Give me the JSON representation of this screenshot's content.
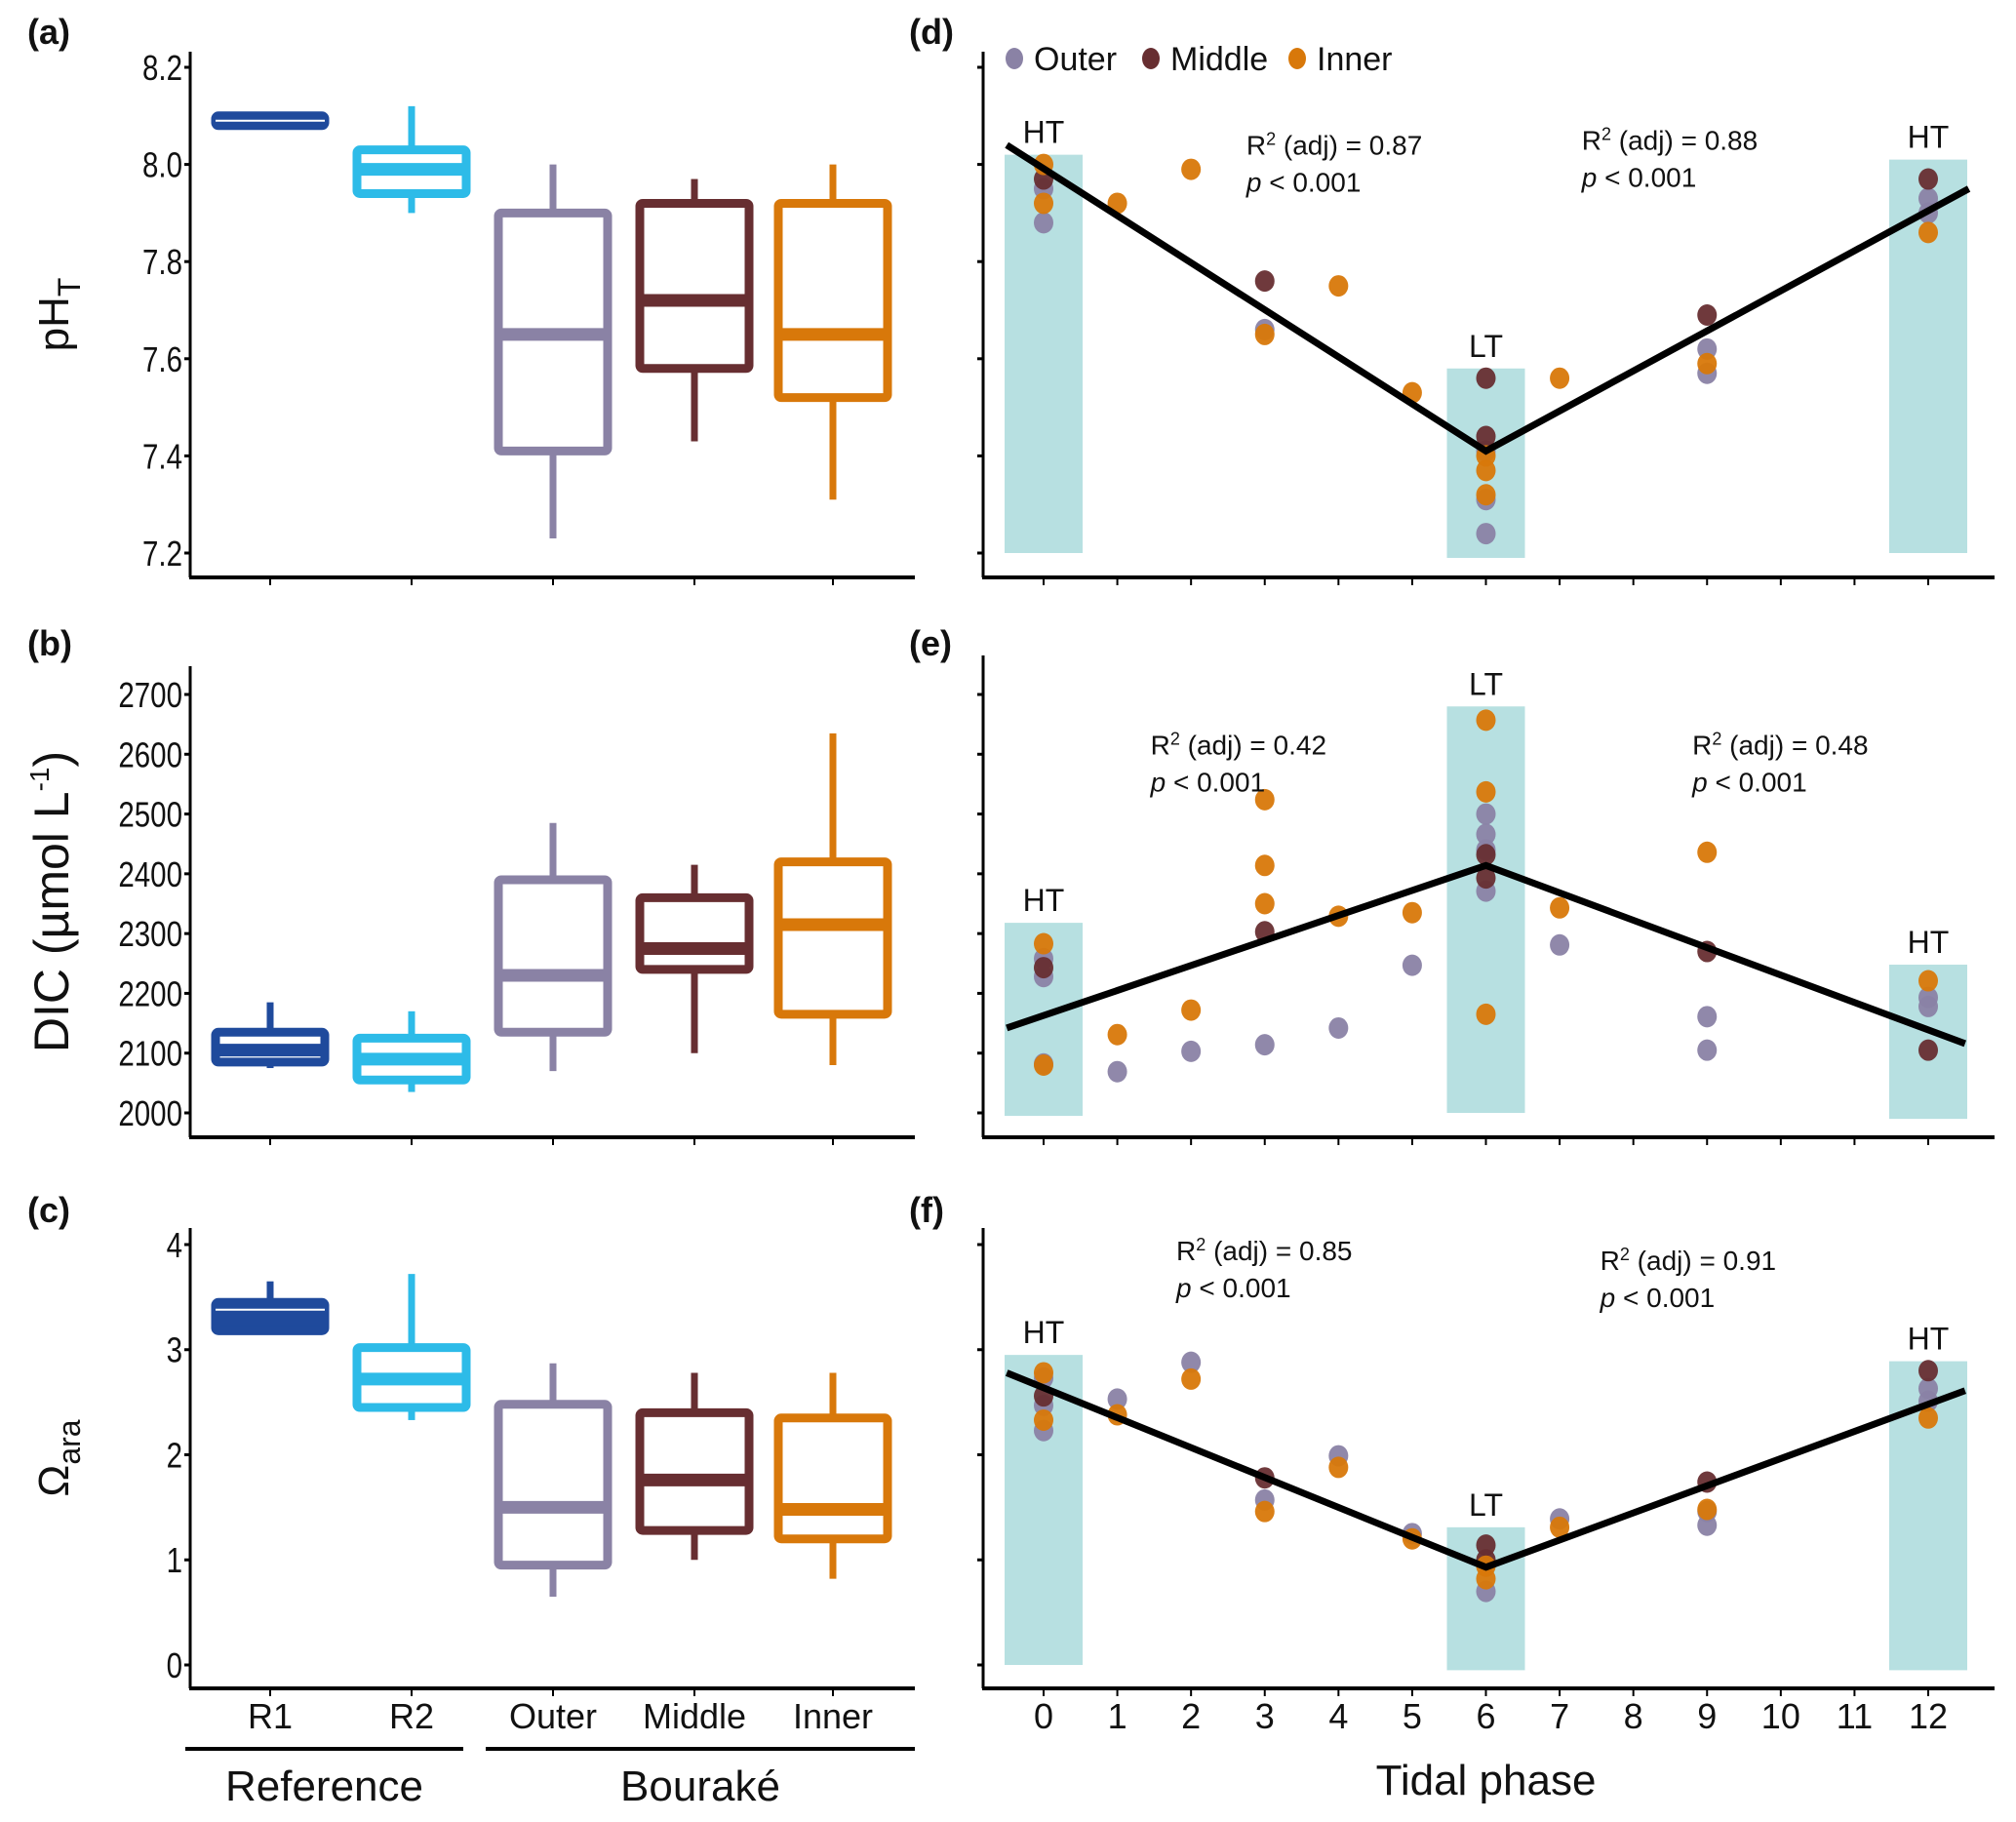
{
  "figure": {
    "panel_letters": [
      "(a)",
      "(b)",
      "(c)",
      "(d)",
      "(e)",
      "(f)"
    ],
    "colors": {
      "R1": "#1f4a9c",
      "R2": "#2dbbe8",
      "Outer": "#8a82a5",
      "Middle": "#672e31",
      "Inner": "#d8780a",
      "tide_band": "#b7e0e1",
      "regression": "#000000"
    }
  },
  "chart_data": [
    {
      "id": "a",
      "type": "box",
      "title": "(a)",
      "ylabel": "pH",
      "ylabel_sub": "T",
      "ylim": [
        7.2,
        8.2
      ],
      "yticks": [
        7.2,
        7.4,
        7.6,
        7.8,
        8.0,
        8.2
      ],
      "ytick_labels": [
        "7.2",
        "7.4",
        "7.6",
        "7.8",
        "8.0",
        "8.2"
      ],
      "categories": [
        "R1",
        "R2",
        "Outer",
        "Middle",
        "Inner"
      ],
      "boxes": [
        {
          "category": "R1",
          "whisker_low": 8.08,
          "q1": 8.08,
          "median": 8.09,
          "q3": 8.1,
          "whisker_high": 8.1
        },
        {
          "category": "R2",
          "whisker_low": 7.9,
          "q1": 7.94,
          "median": 7.99,
          "q3": 8.03,
          "whisker_high": 8.12
        },
        {
          "category": "Outer",
          "whisker_low": 7.23,
          "q1": 7.41,
          "median": 7.65,
          "q3": 7.9,
          "whisker_high": 8.0
        },
        {
          "category": "Middle",
          "whisker_low": 7.43,
          "q1": 7.58,
          "median": 7.72,
          "q3": 7.92,
          "whisker_high": 7.97
        },
        {
          "category": "Inner",
          "whisker_low": 7.31,
          "q1": 7.52,
          "median": 7.65,
          "q3": 7.92,
          "whisker_high": 8.0
        }
      ]
    },
    {
      "id": "b",
      "type": "box",
      "title": "(b)",
      "ylabel": "DIC (µmol L",
      "ylabel_sup": "-1",
      "ylabel_close": ")",
      "ylim": [
        2000,
        2700
      ],
      "yticks": [
        2000,
        2100,
        2200,
        2300,
        2400,
        2500,
        2600,
        2700
      ],
      "ytick_labels": [
        "2000",
        "2100",
        "2200",
        "2300",
        "2400",
        "2500",
        "2600",
        "2700"
      ],
      "categories": [
        "R1",
        "R2",
        "Outer",
        "Middle",
        "Inner"
      ],
      "boxes": [
        {
          "category": "R1",
          "whisker_low": 2075,
          "q1": 2085,
          "median": 2105,
          "q3": 2135,
          "whisker_high": 2185
        },
        {
          "category": "R2",
          "whisker_low": 2035,
          "q1": 2055,
          "median": 2090,
          "q3": 2125,
          "whisker_high": 2170
        },
        {
          "category": "Outer",
          "whisker_low": 2070,
          "q1": 2135,
          "median": 2230,
          "q3": 2390,
          "whisker_high": 2485
        },
        {
          "category": "Middle",
          "whisker_low": 2100,
          "q1": 2240,
          "median": 2275,
          "q3": 2360,
          "whisker_high": 2415
        },
        {
          "category": "Inner",
          "whisker_low": 2080,
          "q1": 2165,
          "median": 2315,
          "q3": 2420,
          "whisker_high": 2635
        }
      ]
    },
    {
      "id": "c",
      "type": "box",
      "title": "(c)",
      "ylabel": "Ω",
      "ylabel_sub": "ara",
      "ylim": [
        0,
        4
      ],
      "yticks": [
        0,
        1,
        2,
        3,
        4
      ],
      "ytick_labels": [
        "0",
        "1",
        "2",
        "3",
        "4"
      ],
      "categories": [
        "R1",
        "R2",
        "Outer",
        "Middle",
        "Inner"
      ],
      "category_labels": [
        "R1",
        "R2",
        "Outer",
        "Middle",
        "Inner"
      ],
      "groups": [
        {
          "label": "Reference",
          "categories": [
            "R1",
            "R2"
          ]
        },
        {
          "label": "Bouraké",
          "categories": [
            "Outer",
            "Middle",
            "Inner"
          ]
        }
      ],
      "boxes": [
        {
          "category": "R1",
          "whisker_low": 3.18,
          "q1": 3.18,
          "median": 3.38,
          "q3": 3.45,
          "whisker_high": 3.65
        },
        {
          "category": "R2",
          "whisker_low": 2.33,
          "q1": 2.45,
          "median": 2.72,
          "q3": 3.02,
          "whisker_high": 3.72
        },
        {
          "category": "Outer",
          "whisker_low": 0.65,
          "q1": 0.95,
          "median": 1.5,
          "q3": 2.48,
          "whisker_high": 2.87
        },
        {
          "category": "Middle",
          "whisker_low": 1.0,
          "q1": 1.28,
          "median": 1.76,
          "q3": 2.4,
          "whisker_high": 2.78
        },
        {
          "category": "Inner",
          "whisker_low": 0.82,
          "q1": 1.2,
          "median": 1.48,
          "q3": 2.35,
          "whisker_high": 2.78
        }
      ]
    },
    {
      "id": "d",
      "type": "scatter",
      "title": "(d)",
      "legend": {
        "placement": "top-left",
        "entries": [
          "Outer",
          "Middle",
          "Inner"
        ]
      },
      "xlim": [
        -0.7,
        12.9
      ],
      "xticks": [
        0,
        1,
        2,
        3,
        4,
        5,
        6,
        7,
        8,
        9,
        10,
        11,
        12
      ],
      "ylim": [
        7.2,
        8.2
      ],
      "yticks": [
        7.2,
        7.4,
        7.6,
        7.8,
        8.0,
        8.2
      ],
      "tide_bands": [
        {
          "x": 0,
          "label": "HT",
          "y_low": 7.2,
          "y_high": 8.02
        },
        {
          "x": 6,
          "label": "LT",
          "y_low": 7.19,
          "y_high": 7.58
        },
        {
          "x": 12,
          "label": "HT",
          "y_low": 7.2,
          "y_high": 8.01
        }
      ],
      "regression": {
        "points": [
          [
            -0.5,
            8.04
          ],
          [
            6,
            7.41
          ],
          [
            12.55,
            7.95
          ]
        ]
      },
      "annotations": [
        {
          "r2": "R² (adj) = 0.87",
          "p": "< 0.001",
          "x": 2.75,
          "y": 8.02
        },
        {
          "r2": "R² (adj) = 0.88",
          "p": "< 0.001",
          "x": 7.3,
          "y": 8.03
        }
      ],
      "series": [
        {
          "name": "Outer",
          "points": [
            [
              0,
              7.95
            ],
            [
              0,
              7.88
            ],
            [
              3,
              7.66
            ],
            [
              6,
              7.41
            ],
            [
              6,
              7.31
            ],
            [
              6,
              7.24
            ],
            [
              9,
              7.62
            ],
            [
              9,
              7.57
            ],
            [
              12,
              7.93
            ],
            [
              12,
              7.9
            ]
          ]
        },
        {
          "name": "Middle",
          "points": [
            [
              0,
              7.97
            ],
            [
              3,
              7.76
            ],
            [
              6,
              7.56
            ],
            [
              6,
              7.44
            ],
            [
              9,
              7.69
            ],
            [
              12,
              7.97
            ]
          ]
        },
        {
          "name": "Inner",
          "points": [
            [
              0,
              8.0
            ],
            [
              0,
              7.92
            ],
            [
              1,
              7.92
            ],
            [
              2,
              7.99
            ],
            [
              3,
              7.65
            ],
            [
              4,
              7.75
            ],
            [
              5,
              7.53
            ],
            [
              6,
              7.4
            ],
            [
              6,
              7.37
            ],
            [
              6,
              7.32
            ],
            [
              7,
              7.56
            ],
            [
              9,
              7.59
            ],
            [
              12,
              7.86
            ]
          ]
        }
      ]
    },
    {
      "id": "e",
      "type": "scatter",
      "title": "(e)",
      "xlim": [
        -0.7,
        12.9
      ],
      "xticks": [
        0,
        1,
        2,
        3,
        4,
        5,
        6,
        7,
        8,
        9,
        10,
        11,
        12
      ],
      "ylim": [
        2000,
        2700
      ],
      "yticks": [
        2000,
        2100,
        2200,
        2300,
        2400,
        2500,
        2600,
        2700
      ],
      "tide_bands": [
        {
          "x": 0,
          "label": "HT",
          "y_low": 1995,
          "y_high": 2318
        },
        {
          "x": 6,
          "label": "LT",
          "y_low": 2000,
          "y_high": 2680
        },
        {
          "x": 12,
          "label": "HT",
          "y_low": 1990,
          "y_high": 2248
        }
      ],
      "regression": {
        "points": [
          [
            -0.5,
            2142
          ],
          [
            6,
            2414
          ],
          [
            12.5,
            2116
          ]
        ]
      },
      "annotations": [
        {
          "r2": "R² (adj) = 0.42",
          "p": "< 0.001",
          "x": 1.45,
          "y": 2600
        },
        {
          "r2": "R² (adj) = 0.48",
          "p": "< 0.001",
          "x": 8.8,
          "y": 2600
        }
      ],
      "series": [
        {
          "name": "Outer",
          "points": [
            [
              0,
              2258
            ],
            [
              0,
              2228
            ],
            [
              0,
              2082
            ],
            [
              1,
              2069
            ],
            [
              2,
              2103
            ],
            [
              3,
              2114
            ],
            [
              4,
              2142
            ],
            [
              5,
              2247
            ],
            [
              6,
              2500
            ],
            [
              6,
              2466
            ],
            [
              6,
              2440
            ],
            [
              6,
              2371
            ],
            [
              7,
              2281
            ],
            [
              9,
              2161
            ],
            [
              9,
              2105
            ],
            [
              12,
              2193
            ],
            [
              12,
              2178
            ]
          ]
        },
        {
          "name": "Middle",
          "points": [
            [
              0,
              2243
            ],
            [
              3,
              2303
            ],
            [
              6,
              2432
            ],
            [
              6,
              2393
            ],
            [
              9,
              2270
            ],
            [
              12,
              2105
            ]
          ]
        },
        {
          "name": "Inner",
          "points": [
            [
              0,
              2283
            ],
            [
              0,
              2080
            ],
            [
              1,
              2131
            ],
            [
              2,
              2172
            ],
            [
              3,
              2524
            ],
            [
              3,
              2414
            ],
            [
              3,
              2350
            ],
            [
              4,
              2329
            ],
            [
              5,
              2335
            ],
            [
              6,
              2657
            ],
            [
              6,
              2537
            ],
            [
              6,
              2165
            ],
            [
              7,
              2343
            ],
            [
              9,
              2436
            ],
            [
              12,
              2221
            ]
          ]
        }
      ]
    },
    {
      "id": "f",
      "type": "scatter",
      "title": "(f)",
      "xlabel": "Tidal phase",
      "xlim": [
        -0.7,
        12.9
      ],
      "xticks": [
        0,
        1,
        2,
        3,
        4,
        5,
        6,
        7,
        8,
        9,
        10,
        11,
        12
      ],
      "xtick_labels": [
        "0",
        "1",
        "2",
        "3",
        "4",
        "5",
        "6",
        "7",
        "8",
        "9",
        "10",
        "11",
        "12"
      ],
      "ylim": [
        0,
        4
      ],
      "yticks": [
        0,
        1,
        2,
        3,
        4
      ],
      "tide_bands": [
        {
          "x": 0,
          "label": "HT",
          "y_low": 0.0,
          "y_high": 2.95
        },
        {
          "x": 6,
          "label": "LT",
          "y_low": -0.05,
          "y_high": 1.31
        },
        {
          "x": 12,
          "label": "HT",
          "y_low": -0.05,
          "y_high": 2.89
        }
      ],
      "regression": {
        "points": [
          [
            -0.5,
            2.78
          ],
          [
            6,
            0.93
          ],
          [
            12.5,
            2.61
          ]
        ]
      },
      "annotations": [
        {
          "r2": "R² (adj) = 0.85",
          "p": "< 0.001",
          "x": 1.8,
          "y": 3.85
        },
        {
          "r2": "R² (adj) = 0.91",
          "p": "< 0.001",
          "x": 7.55,
          "y": 3.76
        }
      ],
      "series": [
        {
          "name": "Outer",
          "points": [
            [
              0,
              2.73
            ],
            [
              0,
              2.47
            ],
            [
              0,
              2.23
            ],
            [
              1,
              2.53
            ],
            [
              2,
              2.88
            ],
            [
              3,
              1.57
            ],
            [
              4,
              1.99
            ],
            [
              5,
              1.25
            ],
            [
              6,
              0.7
            ],
            [
              7,
              1.39
            ],
            [
              9,
              1.46
            ],
            [
              9,
              1.33
            ],
            [
              12,
              2.63
            ],
            [
              12,
              2.51
            ]
          ]
        },
        {
          "name": "Middle",
          "points": [
            [
              0,
              2.56
            ],
            [
              3,
              1.78
            ],
            [
              6,
              1.14
            ],
            [
              6,
              1.0
            ],
            [
              9,
              1.74
            ],
            [
              12,
              2.8
            ]
          ]
        },
        {
          "name": "Inner",
          "points": [
            [
              0,
              2.78
            ],
            [
              0,
              2.33
            ],
            [
              1,
              2.38
            ],
            [
              2,
              2.72
            ],
            [
              3,
              1.46
            ],
            [
              4,
              1.88
            ],
            [
              5,
              1.2
            ],
            [
              6,
              0.94
            ],
            [
              6,
              0.82
            ],
            [
              7,
              1.31
            ],
            [
              9,
              1.48
            ],
            [
              12,
              2.35
            ]
          ]
        }
      ]
    }
  ]
}
